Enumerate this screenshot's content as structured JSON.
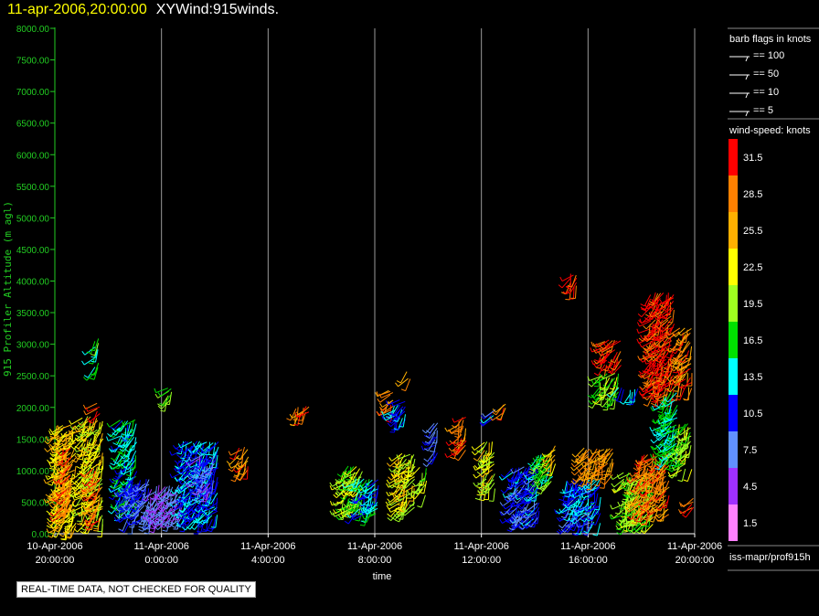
{
  "header": {
    "datetime": "11-apr-2006,20:00:00",
    "name": "XYWind:915winds."
  },
  "notice": "REAL-TIME DATA, NOT CHECKED FOR QUALITY",
  "footer_source": "iss-mapr/prof915h",
  "chart_data": {
    "type": "scatter",
    "subtype": "wind-barbs",
    "ylabel": "915 Profiler Altitude (m agl)",
    "xlabel": "time",
    "ylim": [
      0,
      8000
    ],
    "xlim_hours": [
      0,
      24
    ],
    "y_ticks": [
      "0.00",
      "500.00",
      "1000.00",
      "1500.00",
      "2000.00",
      "2500.00",
      "3000.00",
      "3500.00",
      "4000.00",
      "4500.00",
      "5000.00",
      "5500.00",
      "6000.00",
      "6500.00",
      "7000.00",
      "7500.00",
      "8000.00"
    ],
    "x_ticks": [
      {
        "date": "10-Apr-2006",
        "time": "20:00:00"
      },
      {
        "date": "11-Apr-2006",
        "time": "0:00:00"
      },
      {
        "date": "11-Apr-2006",
        "time": "4:00:00"
      },
      {
        "date": "11-Apr-2006",
        "time": "8:00:00"
      },
      {
        "date": "11-Apr-2006",
        "time": "12:00:00"
      },
      {
        "date": "11-Apr-2006",
        "time": "16:00:00"
      },
      {
        "date": "11-Apr-2006",
        "time": "20:00:00"
      }
    ],
    "barb_legend": {
      "title": "barb flags in knots",
      "items": [
        "== 100",
        "== 50",
        "== 10",
        "== 5"
      ]
    },
    "colorbar": {
      "title": "wind-speed: knots",
      "levels": [
        {
          "label": "31.5",
          "color": "#ff0000"
        },
        {
          "label": "28.5",
          "color": "#ff8000"
        },
        {
          "label": "25.5",
          "color": "#ffb000"
        },
        {
          "label": "22.5",
          "color": "#ffff00"
        },
        {
          "label": "19.5",
          "color": "#a0ff20"
        },
        {
          "label": "16.5",
          "color": "#00e000"
        },
        {
          "label": "13.5",
          "color": "#00ffff"
        },
        {
          "label": "10.5",
          "color": "#0000ff"
        },
        {
          "label": "7.5",
          "color": "#6090ff"
        },
        {
          "label": "4.5",
          "color": "#a030ff"
        },
        {
          "label": "1.5",
          "color": "#ff80ff"
        }
      ]
    },
    "wind_clusters": [
      {
        "t0": 0.1,
        "t1": 1.4,
        "a0": 100,
        "a1": 1750,
        "speed": 24
      },
      {
        "t0": 0.5,
        "t1": 1.1,
        "a0": 300,
        "a1": 1400,
        "speed": 29
      },
      {
        "t0": 1.7,
        "t1": 3.1,
        "a0": 150,
        "a1": 1900,
        "speed": 22
      },
      {
        "t0": 2.4,
        "t1": 2.9,
        "a0": 200,
        "a1": 1100,
        "speed": 29
      },
      {
        "t0": 2.5,
        "t1": 2.8,
        "a0": 2550,
        "a1": 3150,
        "speed": 16
      },
      {
        "t0": 2.6,
        "t1": 2.9,
        "a0": 1900,
        "a1": 2100,
        "speed": 31
      },
      {
        "t0": 4.0,
        "t1": 5.2,
        "a0": 400,
        "a1": 1850,
        "speed": 14
      },
      {
        "t0": 4.5,
        "t1": 6.0,
        "a0": 200,
        "a1": 900,
        "speed": 9
      },
      {
        "t0": 6.0,
        "t1": 8.0,
        "a0": 200,
        "a1": 800,
        "speed": 6
      },
      {
        "t0": 7.0,
        "t1": 7.4,
        "a0": 2100,
        "a1": 2350,
        "speed": 18
      },
      {
        "t0": 8.0,
        "t1": 10.3,
        "a0": 200,
        "a1": 1500,
        "speed": 12
      },
      {
        "t0": 9.0,
        "t1": 10.0,
        "a0": 700,
        "a1": 1300,
        "speed": 8
      },
      {
        "t0": 11.5,
        "t1": 12.2,
        "a0": 1000,
        "a1": 1400,
        "speed": 28
      },
      {
        "t0": 15.0,
        "t1": 16.0,
        "a0": 1900,
        "a1": 2050,
        "speed": 28
      },
      {
        "t0": 18.0,
        "t1": 19.3,
        "a0": 350,
        "a1": 1100,
        "speed": 20
      },
      {
        "t0": 18.8,
        "t1": 20.3,
        "a0": 300,
        "a1": 900,
        "speed": 13
      },
      {
        "t0": 20.8,
        "t1": 21.3,
        "a0": 1950,
        "a1": 2300,
        "speed": 29
      },
      {
        "t0": 21.2,
        "t1": 22.0,
        "a0": 1800,
        "a1": 2150,
        "speed": 12
      },
      {
        "t0": 21.5,
        "t1": 22.6,
        "a0": 350,
        "a1": 1300,
        "speed": 22
      },
      {
        "t0": 22.0,
        "t1": 22.4,
        "a0": 2450,
        "a1": 2600,
        "speed": 26
      },
      {
        "t0": 22.8,
        "t1": 23.3,
        "a0": 600,
        "a1": 1100,
        "speed": 20
      },
      {
        "t0": 23.7,
        "t1": 24.0,
        "a0": 1200,
        "a1": 1800,
        "speed": 9
      },
      {
        "t0": 25.2,
        "t1": 25.8,
        "a0": 1300,
        "a1": 1900,
        "speed": 29
      },
      {
        "t0": 26.8,
        "t1": 27.6,
        "a0": 700,
        "a1": 1500,
        "speed": 22
      },
      {
        "t0": 27.2,
        "t1": 27.7,
        "a0": 1800,
        "a1": 2000,
        "speed": 10
      },
      {
        "t0": 28.0,
        "t1": 28.3,
        "a0": 1900,
        "a1": 2100,
        "speed": 28
      },
      {
        "t0": 28.6,
        "t1": 30.4,
        "a0": 200,
        "a1": 1100,
        "speed": 10
      },
      {
        "t0": 30.2,
        "t1": 31.2,
        "a0": 800,
        "a1": 1300,
        "speed": 17
      },
      {
        "t0": 31.0,
        "t1": 31.4,
        "a0": 1100,
        "a1": 1500,
        "speed": 25
      },
      {
        "t0": 32.2,
        "t1": 32.7,
        "a0": 3900,
        "a1": 4150,
        "speed": 31
      },
      {
        "t0": 32.0,
        "t1": 34.2,
        "a0": 150,
        "a1": 900,
        "speed": 11
      },
      {
        "t0": 33.0,
        "t1": 35.0,
        "a0": 900,
        "a1": 1400,
        "speed": 27
      },
      {
        "t0": 34.3,
        "t1": 35.5,
        "a0": 2650,
        "a1": 3100,
        "speed": 31
      },
      {
        "t0": 34.0,
        "t1": 35.3,
        "a0": 2150,
        "a1": 2600,
        "speed": 19
      },
      {
        "t0": 35.2,
        "t1": 36.6,
        "a0": 2200,
        "a1": 2350,
        "speed": 12
      },
      {
        "t0": 35.5,
        "t1": 37.5,
        "a0": 150,
        "a1": 1000,
        "speed": 19
      },
      {
        "t0": 36.5,
        "t1": 38.5,
        "a0": 300,
        "a1": 1300,
        "speed": 28
      },
      {
        "t0": 37.2,
        "t1": 38.8,
        "a0": 2200,
        "a1": 3850,
        "speed": 31
      },
      {
        "t0": 38.0,
        "t1": 39.0,
        "a0": 1200,
        "a1": 2300,
        "speed": 15
      },
      {
        "t0": 39.0,
        "t1": 39.9,
        "a0": 2300,
        "a1": 3300,
        "speed": 28
      },
      {
        "t0": 39.0,
        "t1": 39.9,
        "a0": 1000,
        "a1": 1800,
        "speed": 19
      },
      {
        "t0": 39.8,
        "t1": 40.0,
        "a0": 400,
        "a1": 600,
        "speed": 31
      }
    ]
  }
}
